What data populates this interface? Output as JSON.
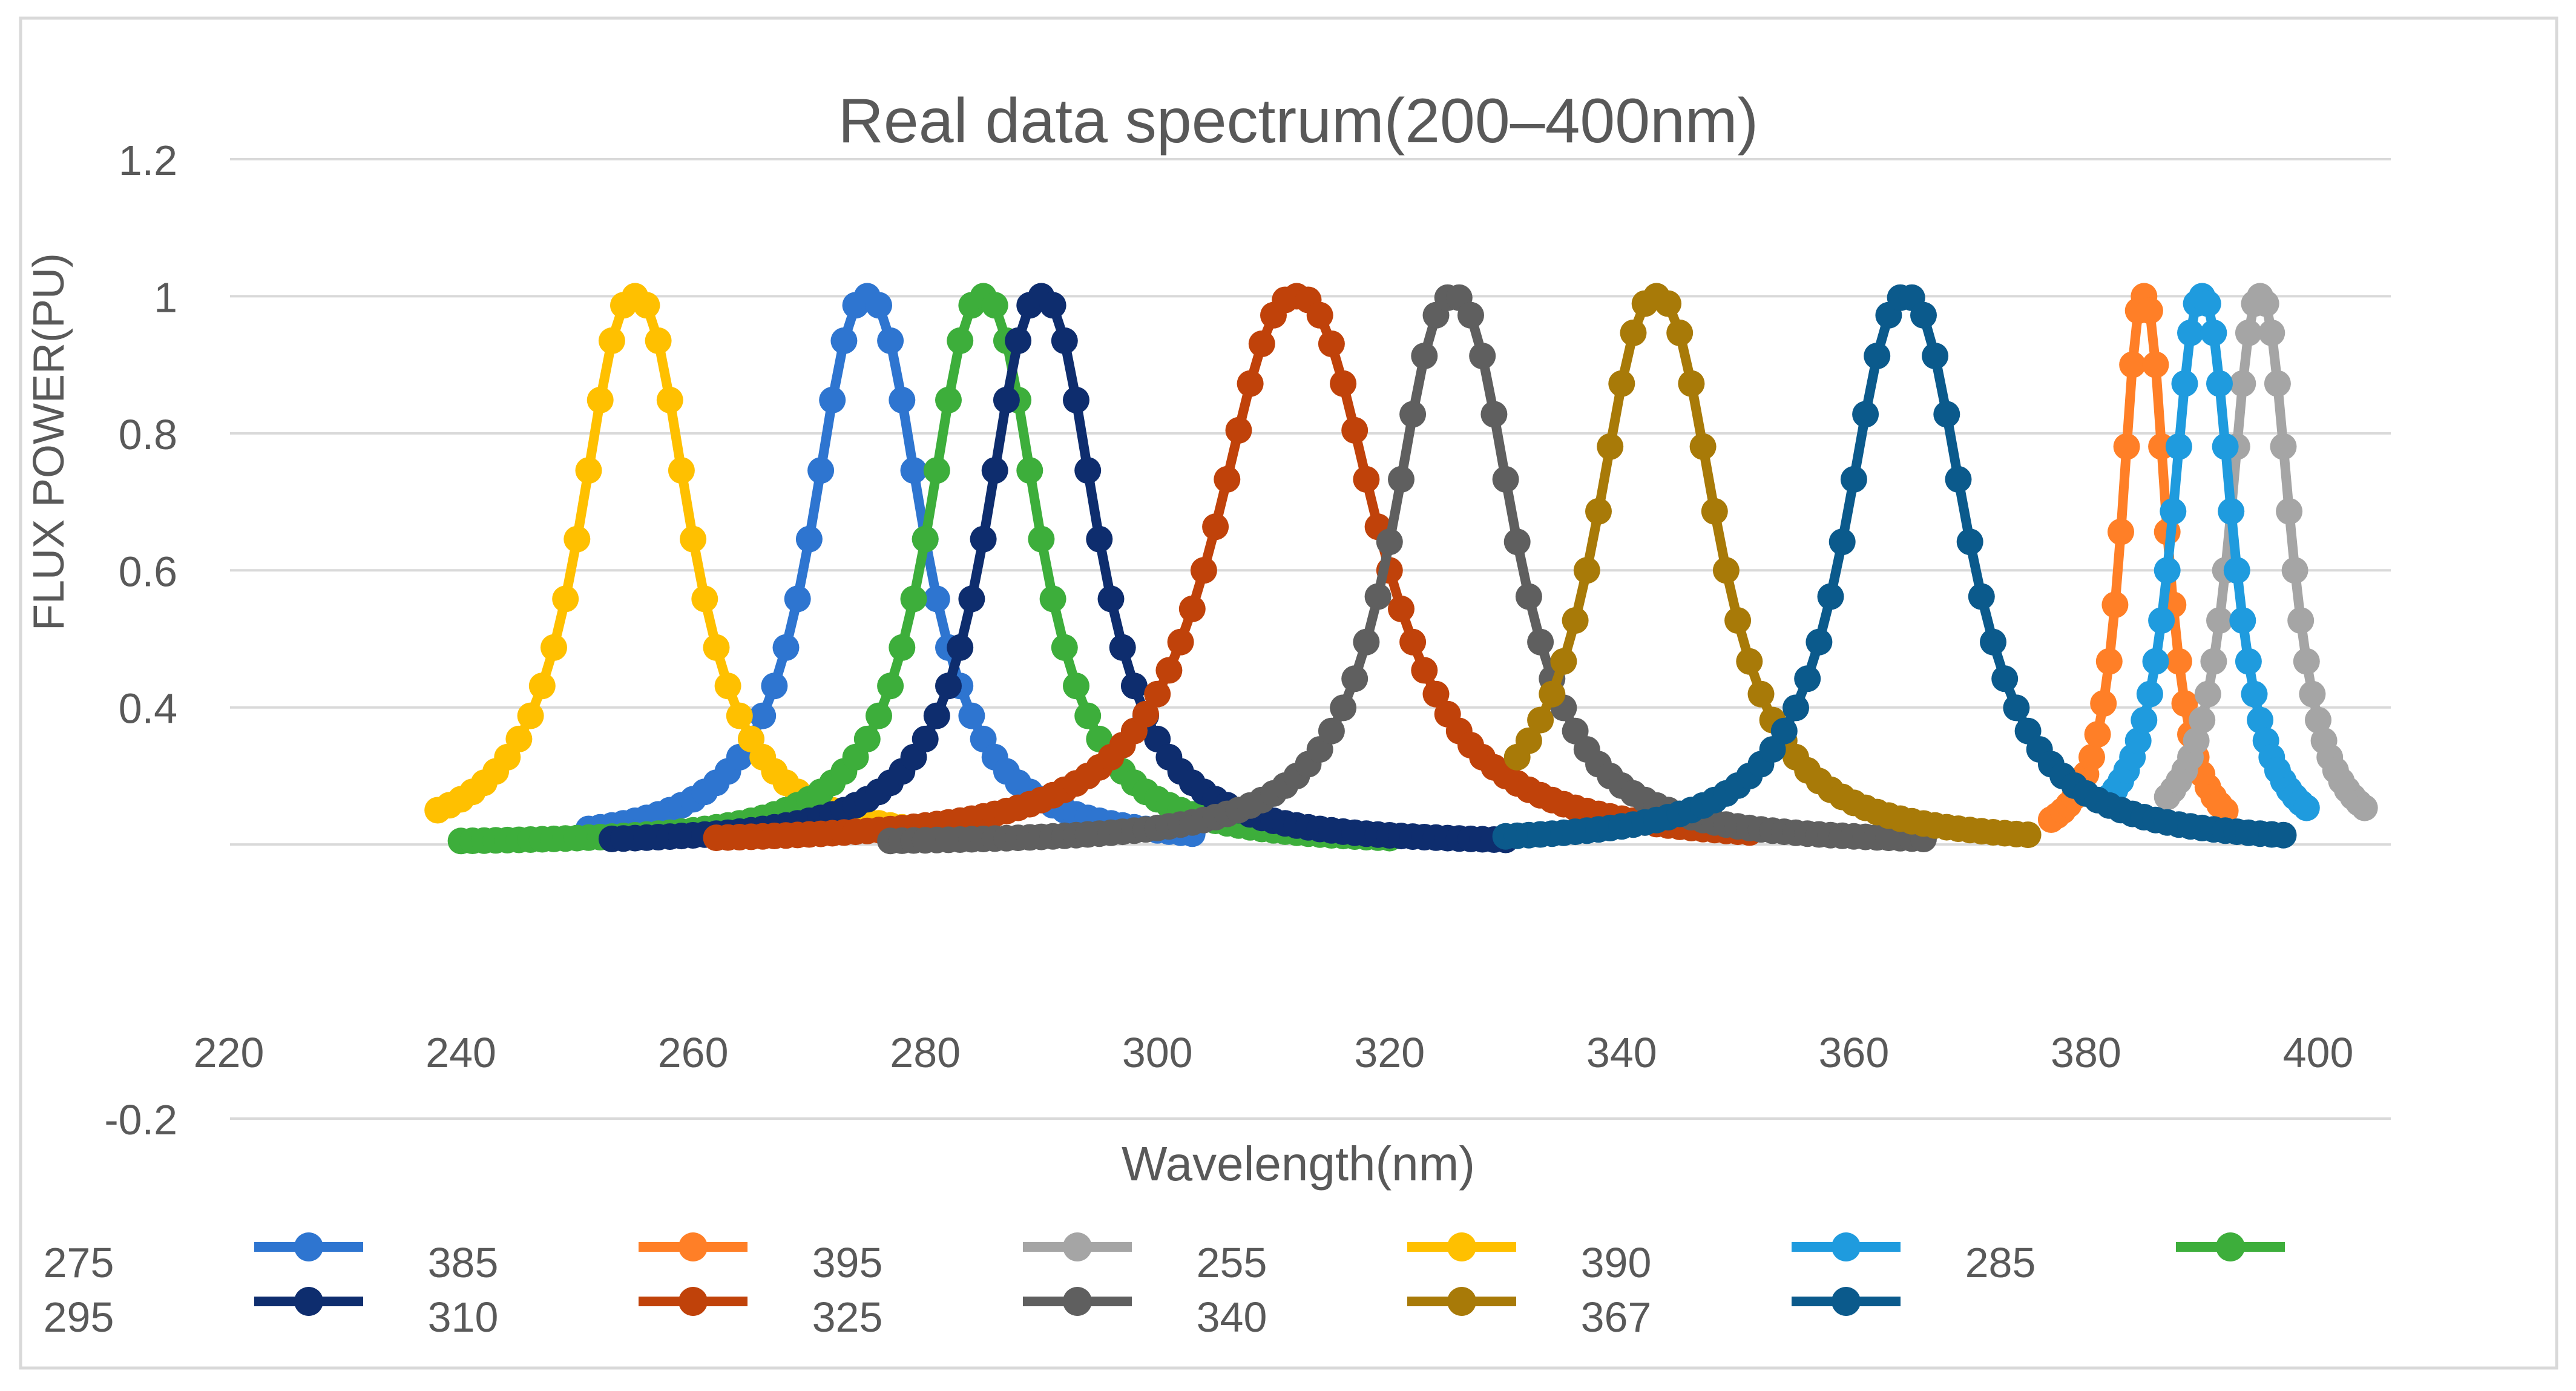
{
  "chart_data": {
    "type": "line",
    "title": "Real data spectrum(200–400nm)",
    "xlabel": "Wavelength(nm)",
    "ylabel": "FLUX POWER(PU)",
    "xlim": [
      220,
      400
    ],
    "ylim": [
      -0.2,
      1.2
    ],
    "baseline_y": 0.2,
    "x_ticks": [
      {
        "value": 220,
        "label": "220"
      },
      {
        "value": 240,
        "label": "240"
      },
      {
        "value": 260,
        "label": "260"
      },
      {
        "value": 280,
        "label": "280"
      },
      {
        "value": 300,
        "label": "300"
      },
      {
        "value": 320,
        "label": "320"
      },
      {
        "value": 340,
        "label": "340"
      },
      {
        "value": 360,
        "label": "360"
      },
      {
        "value": 380,
        "label": "380"
      },
      {
        "value": 400,
        "label": "400"
      }
    ],
    "y_ticks": [
      {
        "value": 1.2,
        "label": "1.2"
      },
      {
        "value": 1.0,
        "label": "1"
      },
      {
        "value": 0.8,
        "label": "0.8"
      },
      {
        "value": 0.6,
        "label": "0.6"
      },
      {
        "value": 0.4,
        "label": "0.4"
      },
      {
        "value": -0.2,
        "label": "-0.2"
      }
    ],
    "gridlines_y": [
      1.2,
      1.0,
      0.8,
      0.6,
      0.4,
      0.2,
      -0.2
    ],
    "legend_position": "bottom",
    "series": [
      {
        "name": "275",
        "color": "#2E75D0",
        "peak_nm": 275,
        "fwhm_nm": 11,
        "start_nm": 251,
        "end_nm": 303
      },
      {
        "name": "385",
        "color": "#FF7F27",
        "peak_nm": 385,
        "fwhm_nm": 4.5,
        "start_nm": 377,
        "end_nm": 392
      },
      {
        "name": "395",
        "color": "#A5A5A5",
        "peak_nm": 395,
        "fwhm_nm": 6,
        "start_nm": 387,
        "end_nm": 404
      },
      {
        "name": "255",
        "color": "#FFC000",
        "peak_nm": 255,
        "fwhm_nm": 11,
        "start_nm": 238,
        "end_nm": 278
      },
      {
        "name": "390",
        "color": "#1F9BDE",
        "peak_nm": 390,
        "fwhm_nm": 6,
        "start_nm": 382,
        "end_nm": 399
      },
      {
        "name": "285",
        "color": "#3DAE3B",
        "peak_nm": 285,
        "fwhm_nm": 11,
        "start_nm": 240,
        "end_nm": 320
      },
      {
        "name": "295",
        "color": "#0E2D6E",
        "peak_nm": 290,
        "fwhm_nm": 11,
        "start_nm": 253,
        "end_nm": 330
      },
      {
        "name": "310",
        "color": "#C0420A",
        "peak_nm": 312,
        "fwhm_nm": 16,
        "start_nm": 262,
        "end_nm": 351
      },
      {
        "name": "325",
        "color": "#5F5F5F",
        "peak_nm": 325.5,
        "fwhm_nm": 12,
        "start_nm": 277,
        "end_nm": 366
      },
      {
        "name": "340",
        "color": "#A87A08",
        "peak_nm": 343,
        "fwhm_nm": 12,
        "start_nm": 331,
        "end_nm": 375
      },
      {
        "name": "367",
        "color": "#0B5A8C",
        "peak_nm": 364.5,
        "fwhm_nm": 12,
        "start_nm": 330,
        "end_nm": 397
      }
    ]
  }
}
